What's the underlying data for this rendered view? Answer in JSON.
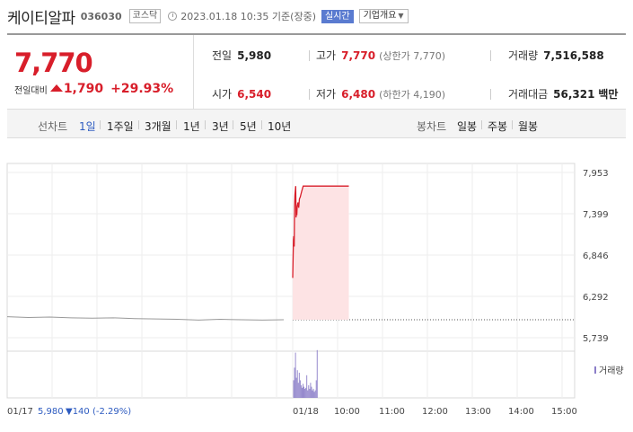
{
  "stock": {
    "name": "케이티알파",
    "code": "036030",
    "market": "코스닥",
    "datetime": "2023.01.18 10:35 기준(장중)",
    "realtime_label": "실시간",
    "company_menu": "기업개요"
  },
  "price": {
    "current": "7,770",
    "change_label": "전일대비",
    "change": "1,790",
    "change_rate": "+29.93%",
    "direction": "up",
    "color": "#d81e2a"
  },
  "stats": {
    "prev_close_label": "전일",
    "prev_close": "5,980",
    "high_label": "고가",
    "high": "7,770",
    "upper_limit_label": "(상한가 7,770)",
    "volume_label": "거래량",
    "volume": "7,516,588",
    "open_label": "시가",
    "open": "6,540",
    "low_label": "저가",
    "low": "6,480",
    "lower_limit_label": "(하한가 4,190)",
    "value_label": "거래대금",
    "value": "56,321",
    "value_unit": "백만"
  },
  "period_tabs": {
    "line_title": "선차트",
    "line": [
      "1일",
      "1주일",
      "3개월",
      "1년",
      "3년",
      "5년",
      "10년"
    ],
    "active": "1일",
    "candle_title": "봉차트",
    "candle": [
      "일봉",
      "주봉",
      "월봉"
    ]
  },
  "chart_data": {
    "type": "line",
    "yticks": [
      "7,953",
      "7,399",
      "6,846",
      "6,292",
      "5,739"
    ],
    "ylim": [
      5739,
      7953
    ],
    "xticks": [
      "01/17",
      "01/18",
      "10:00",
      "11:00",
      "12:00",
      "13:00",
      "14:00",
      "15:00"
    ],
    "prev_close": 5980,
    "prev_day_series": {
      "name": "01/17",
      "values": [
        6020,
        6010,
        6015,
        6005,
        6000,
        6005,
        5995,
        5990,
        5985,
        5975,
        5985,
        5980,
        5975,
        5980
      ]
    },
    "today_series": {
      "name": "01/18",
      "x": [
        0,
        1,
        1.5,
        2,
        2.5,
        3,
        4,
        4.5,
        5,
        5.5,
        6,
        7,
        8,
        9,
        10,
        12,
        14,
        16,
        20,
        30,
        45,
        60,
        75
      ],
      "values": [
        6540,
        7050,
        7100,
        6960,
        7500,
        7650,
        7770,
        7350,
        7450,
        7380,
        7500,
        7550,
        7480,
        7600,
        7620,
        7700,
        7770,
        7770,
        7770,
        7770,
        7770,
        7770,
        7770
      ]
    },
    "volume_label": "거래량",
    "volume_color": "#8b7ec8",
    "line_color": "#d81e2a",
    "fill_color": "#fde3e4",
    "prev_line_color": "#999999",
    "footer": {
      "date": "01/17",
      "prev_close": "5,980",
      "change": "▼140",
      "change_rate": "(-2.29%)"
    }
  }
}
